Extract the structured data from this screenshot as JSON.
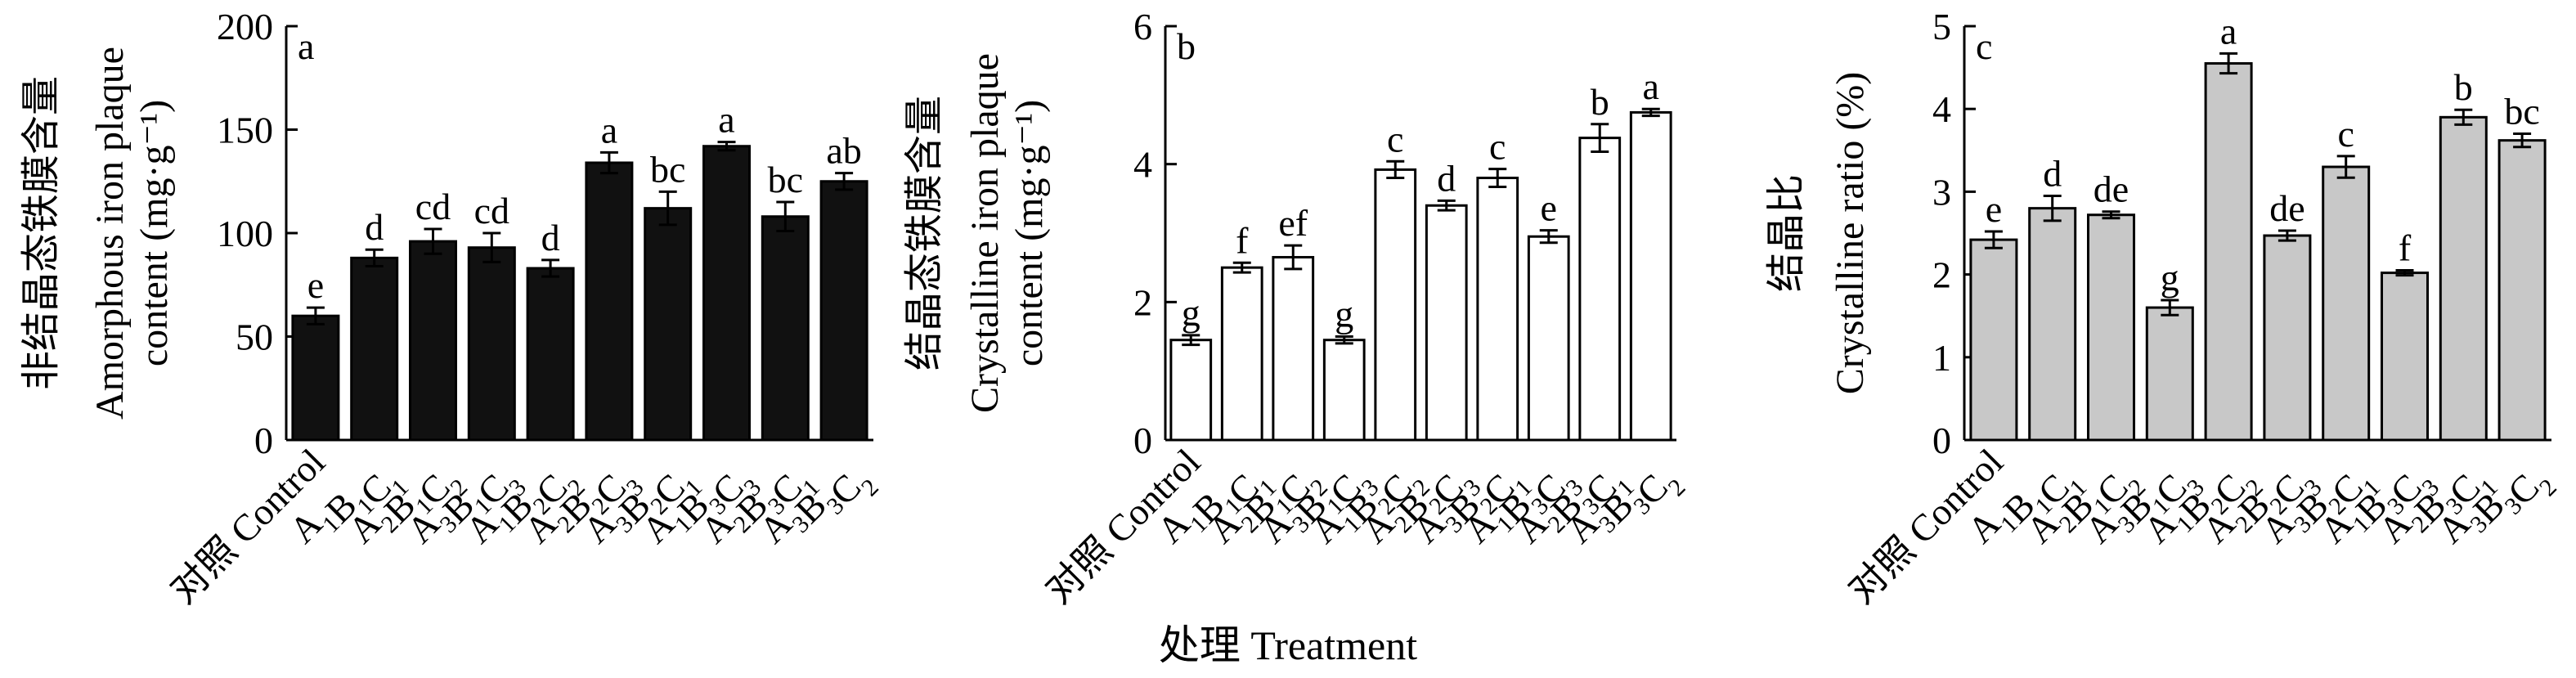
{
  "figure": {
    "x_axis_label": "处理 Treatment"
  },
  "chart_data": [
    {
      "type": "bar",
      "panel_letter": "a",
      "ylabel_cn": "非结晶态铁膜含量",
      "ylabel_en_1": "Amorphous iron plaque",
      "ylabel_en_2": "content (mg·g⁻¹)",
      "ylim": [
        0,
        200
      ],
      "yticks": [
        "0",
        "50",
        "100",
        "150",
        "200"
      ],
      "bar_color": "#111111",
      "categories": [
        "对照 Control",
        "A1B1C1",
        "A2B1C2",
        "A3B1C3",
        "A1B2C2",
        "A2B2C3",
        "A3B2C1",
        "A1B3C3",
        "A2B3C1",
        "A3B3C2"
      ],
      "values": [
        60,
        88,
        96,
        93,
        83,
        134,
        112,
        142,
        108,
        125
      ],
      "errors": [
        4,
        4,
        6,
        7,
        4,
        5,
        8,
        2,
        7,
        4
      ],
      "letters": [
        "e",
        "d",
        "cd",
        "cd",
        "d",
        "a",
        "bc",
        "a",
        "bc",
        "ab"
      ]
    },
    {
      "type": "bar",
      "panel_letter": "b",
      "ylabel_cn": "结晶态铁膜含量",
      "ylabel_en_1": "Crystalline iron plaque",
      "ylabel_en_2": "content (mg·g⁻¹)",
      "ylim": [
        0,
        6
      ],
      "yticks": [
        "0",
        "2",
        "4",
        "6"
      ],
      "bar_color": "#ffffff",
      "categories": [
        "对照 Control",
        "A1B1C1",
        "A2B1C2",
        "A3B1C3",
        "A1B2C2",
        "A2B2C3",
        "A3B2C1",
        "A1B3C3",
        "A2B3C1",
        "A3B3C2"
      ],
      "values": [
        1.45,
        2.5,
        2.65,
        1.45,
        3.92,
        3.4,
        3.8,
        2.95,
        4.38,
        4.75
      ],
      "errors": [
        0.07,
        0.07,
        0.17,
        0.05,
        0.12,
        0.07,
        0.13,
        0.09,
        0.2,
        0.05
      ],
      "letters": [
        "g",
        "f",
        "ef",
        "g",
        "c",
        "d",
        "c",
        "e",
        "b",
        "a"
      ]
    },
    {
      "type": "bar",
      "panel_letter": "c",
      "ylabel_cn": "结晶比",
      "ylabel_en_1": "Crystalline ratio (%)",
      "ylim": [
        0,
        5
      ],
      "yticks": [
        "0",
        "1",
        "2",
        "3",
        "4",
        "5"
      ],
      "bar_color": "#c8c8c8",
      "categories": [
        "对照 Control",
        "A1B1C1",
        "A2B1C2",
        "A3B1C3",
        "A1B2C2",
        "A2B2C3",
        "A3B2C1",
        "A1B3C3",
        "A2B3C1",
        "A3B3C2"
      ],
      "values": [
        2.42,
        2.8,
        2.72,
        1.6,
        4.55,
        2.47,
        3.3,
        2.02,
        3.9,
        3.62
      ],
      "errors": [
        0.1,
        0.15,
        0.04,
        0.09,
        0.12,
        0.06,
        0.13,
        0.03,
        0.09,
        0.08
      ],
      "letters": [
        "e",
        "d",
        "de",
        "g",
        "a",
        "de",
        "c",
        "f",
        "b",
        "bc"
      ]
    }
  ]
}
